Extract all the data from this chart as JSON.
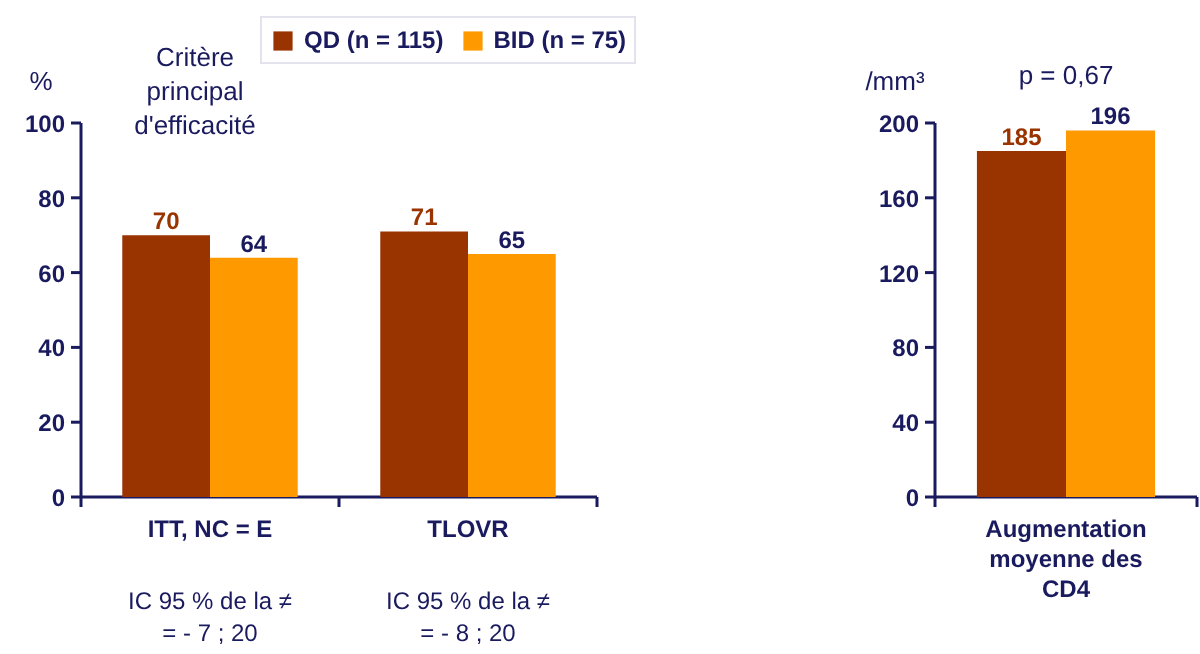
{
  "chart_data": [
    {
      "type": "bar",
      "title": "Critère principal d'efficacité",
      "ylabel": "%",
      "categories": [
        "ITT, NC = E",
        "TLOVR"
      ],
      "series": [
        {
          "name": "QD (n = 115)",
          "color": "#993300",
          "values": [
            70,
            71
          ]
        },
        {
          "name": "BID (n = 75)",
          "color": "#ff9900",
          "values": [
            64,
            65
          ]
        }
      ],
      "ylim": [
        0,
        100
      ],
      "yticks": [
        0,
        20,
        40,
        60,
        80,
        100
      ],
      "data_labels": true,
      "legend": "top right",
      "annotations": [
        "IC 95 % de la ≠ = - 7 ; 20",
        "IC 95 % de la ≠ = - 8 ; 20"
      ]
    },
    {
      "type": "bar",
      "ylabel": "/mm³",
      "categories": [
        "Augmentation moyenne des CD4"
      ],
      "series": [
        {
          "color": "#993300",
          "values": [
            185
          ]
        },
        {
          "color": "#ff9900",
          "values": [
            196
          ]
        }
      ],
      "ylim": [
        0,
        200
      ],
      "yticks": [
        0,
        40,
        80,
        120,
        160,
        200
      ],
      "data_labels": true,
      "annotations": [
        "p = 0,67"
      ]
    }
  ]
}
